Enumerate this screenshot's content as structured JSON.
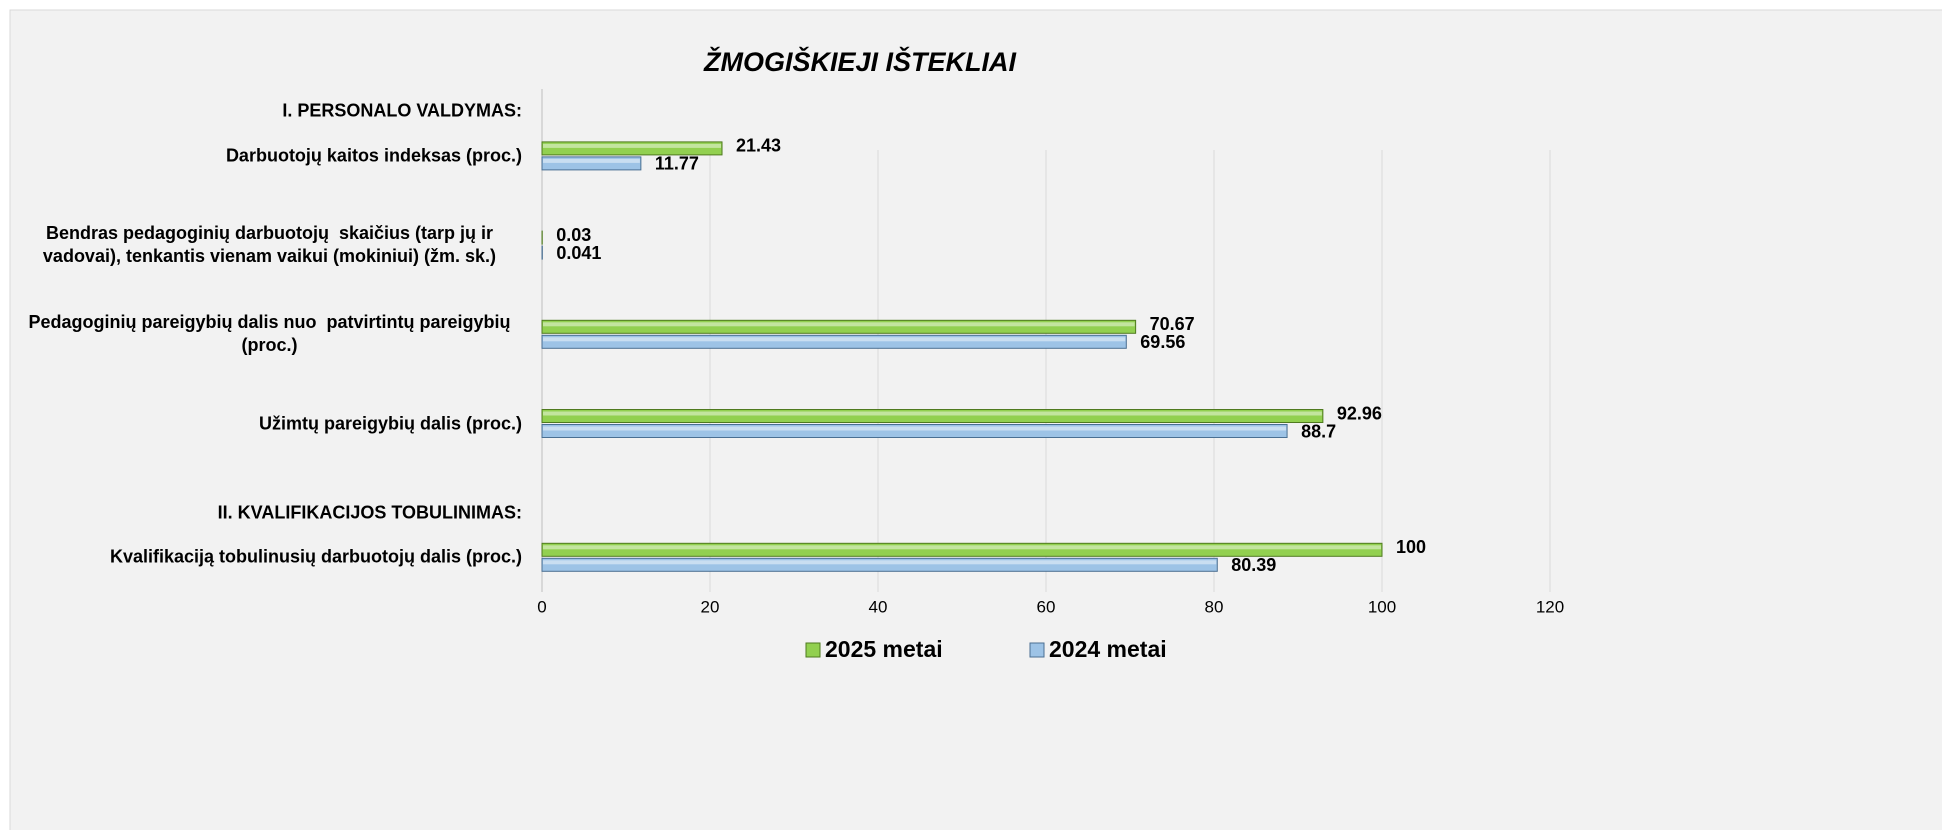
{
  "chart_data": {
    "type": "barh",
    "title": "ŽMOGIŠKIEJI IŠTEKLIAI",
    "categories": [
      "I. PERSONALO VALDYMAS:",
      "Darbuotojų kaitos indeksas (proc.)",
      null,
      "Bendras pedagoginių darbuotojų  skaičius (tarp jų ir vadovai), tenkantis vienam vaikui (mokiniui) (žm. sk.)",
      null,
      "Pedagoginių pareigybių dalis nuo  patvirtintų pareigybių (proc.)",
      null,
      "Užimtų pareigybių dalis (proc.)",
      null,
      "II. KVALIFIKACIJOS TOBULINIMAS:",
      "Kvalifikaciją tobulinusių darbuotojų dalis (proc.)"
    ],
    "series": [
      {
        "name": "2025 metai",
        "color": "#92d050",
        "values": [
          null,
          21.43,
          null,
          0.03,
          null,
          70.67,
          null,
          92.96,
          null,
          null,
          100
        ]
      },
      {
        "name": "2024 metai",
        "color": "#9dc3e6",
        "values": [
          null,
          11.77,
          null,
          0.041,
          null,
          69.56,
          null,
          88.7,
          null,
          null,
          80.39
        ]
      }
    ],
    "xlim": [
      0,
      120
    ],
    "xticks": [
      0,
      20,
      40,
      60,
      80,
      100,
      120
    ],
    "grid": true,
    "legend": "bottom"
  }
}
